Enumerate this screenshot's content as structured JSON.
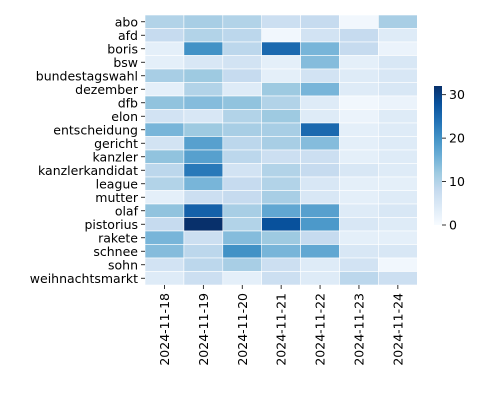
{
  "chart_data": {
    "type": "heatmap",
    "title": "",
    "xlabel": "",
    "ylabel": "",
    "x_categories": [
      "2024-11-18",
      "2024-11-19",
      "2024-11-20",
      "2024-11-21",
      "2024-11-22",
      "2024-11-23",
      "2024-11-24"
    ],
    "y_categories": [
      "abo",
      "afd",
      "boris",
      "bsw",
      "bundestagswahl",
      "dezember",
      "dfb",
      "elon",
      "entscheidung",
      "gericht",
      "kanzler",
      "kanzlerkandidat",
      "league",
      "mutter",
      "olaf",
      "pistorius",
      "rakete",
      "schnee",
      "sohn",
      "weihnachtsmarkt"
    ],
    "values": [
      [
        10,
        11,
        10,
        7,
        8,
        1,
        11
      ],
      [
        8,
        10,
        9,
        1,
        6,
        8,
        4
      ],
      [
        3,
        20,
        9,
        25,
        15,
        8,
        2
      ],
      [
        3,
        5,
        6,
        3,
        14,
        3,
        5
      ],
      [
        11,
        12,
        8,
        3,
        6,
        4,
        5
      ],
      [
        3,
        10,
        4,
        12,
        15,
        4,
        5
      ],
      [
        13,
        14,
        13,
        10,
        4,
        1,
        2
      ],
      [
        6,
        5,
        10,
        12,
        4,
        2,
        4
      ],
      [
        15,
        12,
        11,
        11,
        25,
        3,
        4
      ],
      [
        6,
        18,
        9,
        11,
        14,
        3,
        4
      ],
      [
        13,
        18,
        9,
        7,
        7,
        3,
        4
      ],
      [
        9,
        23,
        6,
        10,
        8,
        5,
        4
      ],
      [
        10,
        15,
        8,
        10,
        5,
        3,
        3
      ],
      [
        3,
        7,
        8,
        11,
        5,
        3,
        4
      ],
      [
        13,
        26,
        11,
        17,
        18,
        4,
        5
      ],
      [
        8,
        32,
        10,
        28,
        19,
        5,
        4
      ],
      [
        15,
        7,
        14,
        12,
        8,
        3,
        3
      ],
      [
        14,
        9,
        20,
        15,
        17,
        5,
        5
      ],
      [
        6,
        9,
        11,
        7,
        4,
        6,
        1
      ],
      [
        4,
        7,
        3,
        7,
        4,
        9,
        7
      ]
    ],
    "colorbar": {
      "min": 0,
      "max": 32,
      "ticks": [
        0,
        10,
        20,
        30
      ]
    },
    "colormap": [
      "#f7fbff",
      "#deebf7",
      "#c6dbef",
      "#9ecae1",
      "#6baed6",
      "#4292c6",
      "#2171b5",
      "#08519c",
      "#08306b"
    ],
    "grid": true,
    "legend": "colorbar-right"
  }
}
